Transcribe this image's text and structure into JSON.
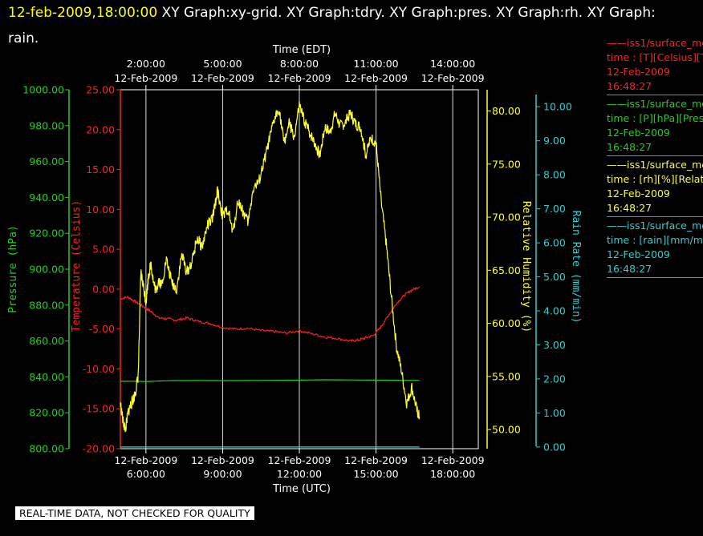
{
  "header": {
    "timestamp": "12-feb-2009,18:00:00",
    "graphs_text": " XY Graph:xy-grid.  XY Graph:tdry.  XY Graph:pres.  XY Graph:rh.  XY Graph: rain."
  },
  "legend": [
    {
      "source": "——iss1/surface_me",
      "field": "time : [T][Celsius][T",
      "date": "12-Feb-2009",
      "time": "16:48:27",
      "color": "#ff2020"
    },
    {
      "source": "——iss1/surface_me",
      "field": "time : [P][hPa][Pres",
      "date": "12-Feb-2009",
      "time": "16:48:27",
      "color": "#20d020"
    },
    {
      "source": "——iss1/surface_me",
      "field": "time : [rh][%][Relati",
      "date": "12-Feb-2009",
      "time": "16:48:27",
      "color": "#ffff30"
    },
    {
      "source": "——iss1/surface_me",
      "field": "time : [rain][mm/min",
      "date": "12-Feb-2009",
      "time": "16:48:27",
      "color": "#30d0d0"
    }
  ],
  "footer": {
    "disclaimer": "REAL-TIME DATA, NOT CHECKED FOR QUALITY"
  },
  "colors": {
    "temperature": "#ff2020",
    "pressure": "#20d020",
    "humidity": "#ffff30",
    "rain": "#30d0d0",
    "grid": "#ffffff"
  },
  "chart_data": {
    "type": "line",
    "xlabel_top": "Time (EDT)",
    "xlabel_bottom": "Time (UTC)",
    "x_range_utc_hours": [
      5.0,
      19.0
    ],
    "grid": true,
    "top_ticks": [
      {
        "date": "12-Feb-2009",
        "time": "2:00:00"
      },
      {
        "date": "12-Feb-2009",
        "time": "5:00:00"
      },
      {
        "date": "12-Feb-2009",
        "time": "8:00:00"
      },
      {
        "date": "12-Feb-2009",
        "time": "11:00:00"
      },
      {
        "date": "12-Feb-2009",
        "time": "14:00:00"
      }
    ],
    "bottom_ticks": [
      {
        "date": "12-Feb-2009",
        "time": "6:00:00"
      },
      {
        "date": "12-Feb-2009",
        "time": "9:00:00"
      },
      {
        "date": "12-Feb-2009",
        "time": "12:00:00"
      },
      {
        "date": "12-Feb-2009",
        "time": "15:00:00"
      },
      {
        "date": "12-Feb-2009",
        "time": "18:00:00"
      }
    ],
    "tick_hours_utc": [
      6,
      9,
      12,
      15,
      18
    ],
    "axes": {
      "pressure": {
        "label": "Pressure (hPa)",
        "range": [
          800,
          1000
        ],
        "ticks": [
          "1000.00",
          "980.00",
          "960.00",
          "940.00",
          "920.00",
          "900.00",
          "880.00",
          "860.00",
          "840.00",
          "820.00",
          "800.00"
        ]
      },
      "temperature": {
        "label": "Temperature (Celsius)",
        "range": [
          -20,
          25
        ],
        "ticks": [
          "25.00",
          "20.00",
          "15.00",
          "10.00",
          "5.00",
          "0.00",
          "-5.00",
          "-10.00",
          "-15.00",
          "-20.00"
        ]
      },
      "humidity": {
        "label": "Relative Humidity (%)",
        "range": [
          48.2,
          82.0
        ],
        "ticks": [
          "80.00",
          "75.00",
          "70.00",
          "65.00",
          "60.00",
          "55.00",
          "50.00"
        ]
      },
      "rain": {
        "label": "Rain Rate (mm/min)",
        "range": [
          -0.05,
          10.5
        ],
        "ticks": [
          "10.00",
          "9.00",
          "8.00",
          "7.00",
          "6.00",
          "5.00",
          "4.00",
          "3.00",
          "2.00",
          "1.00",
          "0.00"
        ]
      }
    },
    "series": [
      {
        "name": "time : [T][Celsius][T",
        "axis": "temperature",
        "x": [
          5.0,
          5.3,
          5.6,
          5.9,
          6.2,
          6.5,
          6.8,
          7.2,
          7.6,
          8.0,
          8.5,
          9.0,
          9.5,
          10.0,
          10.5,
          11.0,
          11.5,
          12.0,
          12.5,
          13.0,
          13.5,
          14.0,
          14.3,
          14.6,
          14.9,
          15.2,
          15.5,
          15.8,
          16.1,
          16.4,
          16.7
        ],
        "values": [
          -1.2,
          -1.0,
          -1.6,
          -2.2,
          -2.8,
          -3.6,
          -3.7,
          -3.9,
          -3.6,
          -4.0,
          -4.3,
          -4.8,
          -5.0,
          -4.9,
          -5.2,
          -5.3,
          -5.5,
          -5.2,
          -5.6,
          -6.0,
          -6.2,
          -6.5,
          -6.4,
          -6.1,
          -5.8,
          -4.7,
          -3.2,
          -1.8,
          -0.8,
          -0.1,
          0.3
        ]
      },
      {
        "name": "time : [P][hPa][Pres",
        "axis": "pressure",
        "x": [
          5.0,
          5.5,
          6.0,
          6.5,
          7.0,
          8.0,
          9.0,
          10.0,
          11.0,
          12.0,
          13.0,
          14.0,
          15.0,
          16.0,
          16.7
        ],
        "values": [
          837.5,
          837.6,
          837.4,
          837.7,
          837.9,
          838.0,
          837.9,
          838.0,
          838.1,
          838.2,
          838.4,
          838.3,
          838.2,
          838.1,
          838.1
        ]
      },
      {
        "name": "time : [rh][%][Relati",
        "axis": "humidity",
        "x": [
          5.0,
          5.1,
          5.2,
          5.3,
          5.4,
          5.5,
          5.6,
          5.7,
          5.8,
          5.9,
          6.0,
          6.1,
          6.2,
          6.3,
          6.4,
          6.5,
          6.6,
          6.8,
          7.0,
          7.2,
          7.4,
          7.6,
          7.8,
          8.0,
          8.2,
          8.4,
          8.6,
          8.8,
          9.0,
          9.2,
          9.4,
          9.6,
          9.8,
          10.0,
          10.2,
          10.4,
          10.6,
          10.8,
          11.0,
          11.2,
          11.4,
          11.6,
          11.8,
          12.0,
          12.2,
          12.4,
          12.6,
          12.8,
          13.0,
          13.2,
          13.4,
          13.6,
          13.8,
          14.0,
          14.2,
          14.4,
          14.6,
          14.8,
          15.0,
          15.2,
          15.4,
          15.6,
          15.8,
          16.0,
          16.2,
          16.4,
          16.6,
          16.7
        ],
        "values": [
          52.5,
          50.8,
          50.0,
          51.6,
          52.3,
          52.8,
          53.6,
          55.2,
          64.8,
          63.5,
          62.0,
          64.5,
          65.6,
          63.8,
          63.0,
          64.2,
          63.5,
          66.0,
          63.9,
          63.2,
          66.5,
          64.8,
          65.8,
          68.0,
          67.2,
          69.2,
          69.8,
          72.5,
          70.0,
          70.8,
          68.5,
          71.6,
          70.5,
          69.5,
          72.8,
          73.2,
          75.0,
          77.0,
          79.0,
          80.3,
          77.0,
          78.8,
          77.5,
          80.5,
          79.0,
          78.0,
          77.0,
          75.8,
          78.5,
          78.0,
          79.8,
          78.6,
          78.9,
          79.8,
          78.8,
          78.5,
          75.8,
          77.5,
          77.0,
          71.5,
          67.5,
          62.5,
          57.8,
          55.5,
          52.5,
          54.0,
          51.8,
          51.2
        ]
      },
      {
        "name": "time : [rain][mm/min",
        "axis": "rain",
        "x": [
          5.0,
          16.7
        ],
        "values": [
          0.0,
          0.0
        ]
      }
    ]
  }
}
